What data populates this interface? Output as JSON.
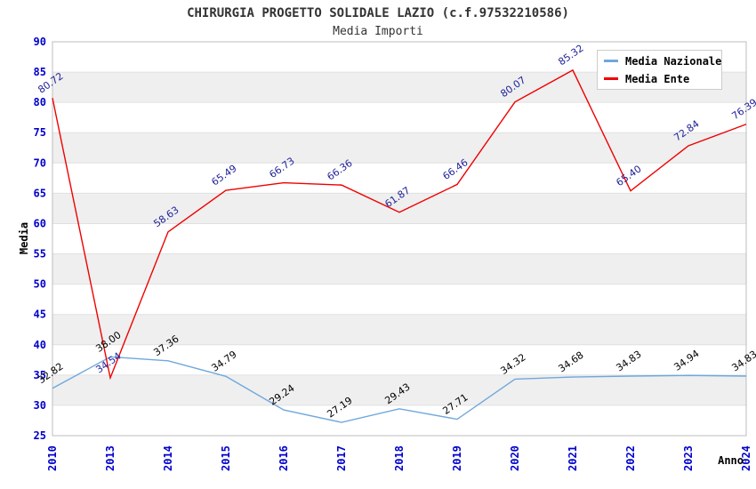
{
  "chart_data": {
    "type": "line",
    "title": "CHIRURGIA PROGETTO SOLIDALE LAZIO (c.f.97532210586)",
    "subtitle": "Media Importi",
    "xlabel": "Anno",
    "ylabel": "Media",
    "categories": [
      "2010",
      "2013",
      "2014",
      "2015",
      "2016",
      "2017",
      "2018",
      "2019",
      "2020",
      "2021",
      "2022",
      "2023",
      "2024"
    ],
    "series": [
      {
        "name": "Media Nazionale",
        "color": "#6fa8dc",
        "label_color": "#000000",
        "values": [
          32.82,
          38.0,
          37.36,
          34.79,
          29.24,
          27.19,
          29.43,
          27.71,
          34.32,
          34.68,
          34.83,
          34.94,
          34.83
        ]
      },
      {
        "name": "Media Ente",
        "color": "#f00000",
        "label_color": "#22229a",
        "values": [
          80.72,
          34.54,
          58.63,
          65.49,
          66.73,
          66.36,
          61.87,
          66.46,
          80.07,
          85.32,
          65.4,
          72.84,
          76.39
        ]
      }
    ],
    "ylim": [
      25,
      90
    ],
    "ytick_step": 5,
    "grid": "horizontal-bands",
    "legend_position": "top-right",
    "style": {
      "band_color": "#efefef",
      "grid_color": "#e0e0e0",
      "border_color": "#bdbdbd",
      "tick_label_color": "#0000cc",
      "title_color": "#333333"
    }
  }
}
